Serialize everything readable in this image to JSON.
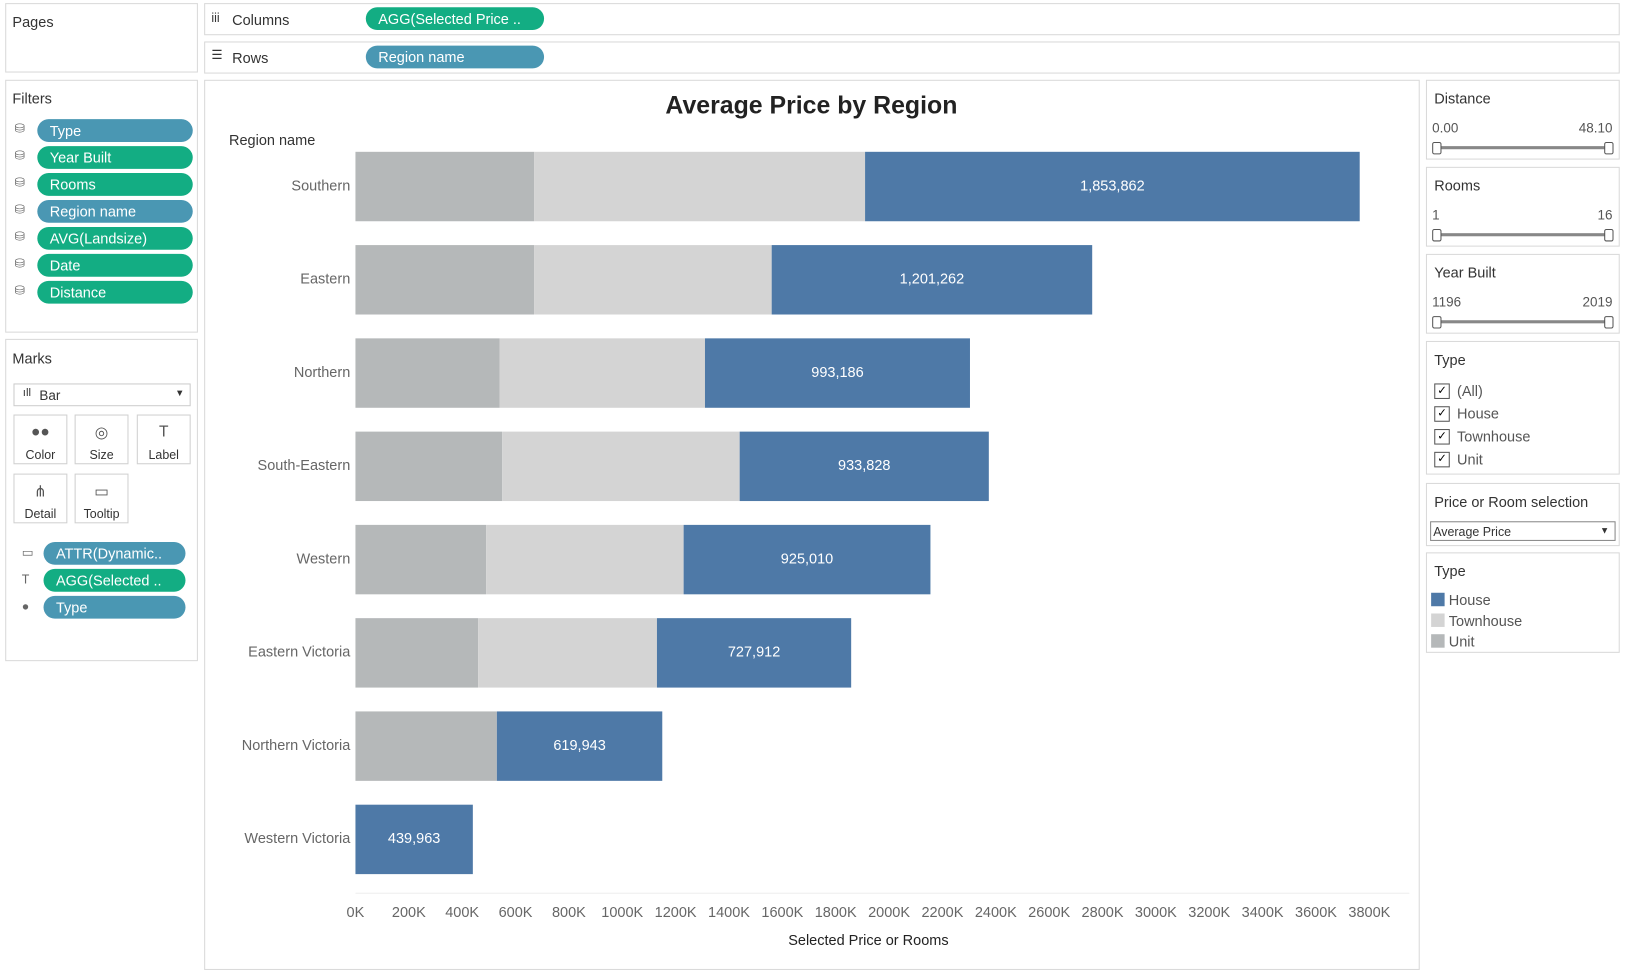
{
  "shelves": {
    "pages": "Pages",
    "columns_label": "Columns",
    "columns_pill": "AGG(Selected Price ..",
    "rows_label": "Rows",
    "rows_pill": "Region name"
  },
  "filters": {
    "title": "Filters",
    "items": [
      "Type",
      "Year Built",
      "Rooms",
      "Region name",
      "AVG(Landsize)",
      "Date",
      "Distance"
    ]
  },
  "marks": {
    "title": "Marks",
    "mark_type": "Bar",
    "buttons": [
      "Color",
      "Size",
      "Label",
      "Detail",
      "Tooltip"
    ],
    "pills": [
      "ATTR(Dynamic..",
      "AGG(Selected ..",
      "Type"
    ]
  },
  "sliders": [
    {
      "title": "Distance",
      "min": "0.00",
      "max": "48.10"
    },
    {
      "title": "Rooms",
      "min": "1",
      "max": "16"
    },
    {
      "title": "Year Built",
      "min": "1196",
      "max": "2019"
    }
  ],
  "type_filter": {
    "title": "Type",
    "options": [
      "(All)",
      "House",
      "Townhouse",
      "Unit"
    ]
  },
  "selection": {
    "title": "Price or Room selection",
    "value": "Average Price"
  },
  "chart_data": {
    "type": "bar",
    "orientation": "horizontal",
    "stacked": true,
    "title": "Average Price by Region",
    "category_header": "Region name",
    "x_label": "Selected Price or Rooms",
    "legend_title": "Type",
    "categories": [
      "Southern",
      "Eastern",
      "Northern",
      "South-Eastern",
      "Western",
      "Eastern Victoria",
      "Northern Victoria",
      "Western Victoria"
    ],
    "series": [
      {
        "name": "Unit",
        "color": "#b5b8b9",
        "values": [
          670000,
          670000,
          540000,
          550000,
          490000,
          460000,
          530000,
          null
        ]
      },
      {
        "name": "Townhouse",
        "color": "#d4d4d4",
        "values": [
          1240000,
          890000,
          770000,
          890000,
          740000,
          670000,
          null,
          null
        ]
      },
      {
        "name": "House",
        "color": "#4e79a7",
        "values": [
          1853862,
          1201262,
          993186,
          933828,
          925010,
          727912,
          619943,
          439963
        ],
        "value_labels": [
          "1,853,862",
          "1,201,262",
          "993,186",
          "933,828",
          "925,010",
          "727,912",
          "619,943",
          "439,963"
        ]
      }
    ],
    "xlim": [
      0,
      3950000
    ],
    "xticks": [
      {
        "value": 0,
        "label": "0K"
      },
      {
        "value": 200000,
        "label": "200K"
      },
      {
        "value": 400000,
        "label": "400K"
      },
      {
        "value": 600000,
        "label": "600K"
      },
      {
        "value": 800000,
        "label": "800K"
      },
      {
        "value": 1000000,
        "label": "1000K"
      },
      {
        "value": 1200000,
        "label": "1200K"
      },
      {
        "value": 1400000,
        "label": "1400K"
      },
      {
        "value": 1600000,
        "label": "1600K"
      },
      {
        "value": 1800000,
        "label": "1800K"
      },
      {
        "value": 2000000,
        "label": "2000K"
      },
      {
        "value": 2200000,
        "label": "2200K"
      },
      {
        "value": 2400000,
        "label": "2400K"
      },
      {
        "value": 2600000,
        "label": "2600K"
      },
      {
        "value": 2800000,
        "label": "2800K"
      },
      {
        "value": 3000000,
        "label": "3000K"
      },
      {
        "value": 3200000,
        "label": "3200K"
      },
      {
        "value": 3400000,
        "label": "3400K"
      },
      {
        "value": 3600000,
        "label": "3600K"
      },
      {
        "value": 3800000,
        "label": "3800K"
      }
    ],
    "grid": false
  }
}
